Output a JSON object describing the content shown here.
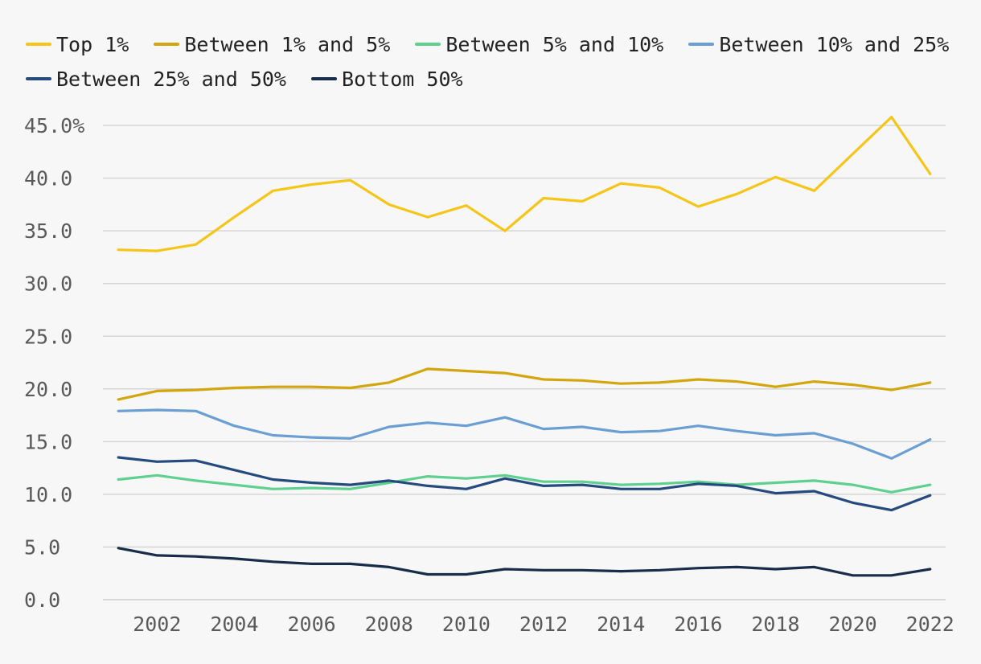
{
  "chart_data": {
    "type": "line",
    "title": "",
    "xlabel": "",
    "ylabel": "",
    "x": [
      2001,
      2002,
      2003,
      2004,
      2005,
      2006,
      2007,
      2008,
      2009,
      2010,
      2011,
      2012,
      2013,
      2014,
      2015,
      2016,
      2017,
      2018,
      2019,
      2020,
      2021,
      2022
    ],
    "x_ticks": [
      "2002",
      "2004",
      "2006",
      "2008",
      "2010",
      "2012",
      "2014",
      "2016",
      "2018",
      "2020",
      "2022"
    ],
    "y_ticks": [
      "0.0",
      "5.0",
      "10.0",
      "15.0",
      "20.0",
      "25.0",
      "30.0",
      "35.0",
      "40.0",
      "45.0%"
    ],
    "ylim": [
      0,
      46
    ],
    "grid": "horizontal",
    "legend_position": "top",
    "series": [
      {
        "name": "Top 1%",
        "color": "#f5c518",
        "values": [
          33.2,
          33.1,
          33.7,
          36.3,
          38.8,
          39.4,
          39.8,
          37.5,
          36.3,
          37.4,
          35.0,
          38.1,
          37.8,
          39.5,
          39.1,
          37.3,
          38.5,
          40.1,
          38.8,
          42.3,
          45.8,
          40.4
        ]
      },
      {
        "name": "Between 1% and 5%",
        "color": "#d4a60d",
        "values": [
          19.0,
          19.8,
          19.9,
          20.1,
          20.2,
          20.2,
          20.1,
          20.6,
          21.9,
          21.7,
          21.5,
          20.9,
          20.8,
          20.5,
          20.6,
          20.9,
          20.7,
          20.2,
          20.7,
          20.4,
          19.9,
          20.6
        ]
      },
      {
        "name": "Between 5% and 10%",
        "color": "#5fd08f",
        "values": [
          11.4,
          11.8,
          11.3,
          10.9,
          10.5,
          10.6,
          10.5,
          11.1,
          11.7,
          11.5,
          11.8,
          11.2,
          11.2,
          10.9,
          11.0,
          11.2,
          10.9,
          11.1,
          11.3,
          10.9,
          10.2,
          10.9
        ]
      },
      {
        "name": "Between 10% and 25%",
        "color": "#6b9ed2",
        "values": [
          17.9,
          18.0,
          17.9,
          16.5,
          15.6,
          15.4,
          15.3,
          16.4,
          16.8,
          16.5,
          17.3,
          16.2,
          16.4,
          15.9,
          16.0,
          16.5,
          16.0,
          15.6,
          15.8,
          14.8,
          13.4,
          15.2
        ]
      },
      {
        "name": "Between 25% and 50%",
        "color": "#254a7e",
        "values": [
          13.5,
          13.1,
          13.2,
          12.3,
          11.4,
          11.1,
          10.9,
          11.3,
          10.8,
          10.5,
          11.5,
          10.8,
          10.9,
          10.5,
          10.5,
          11.0,
          10.8,
          10.1,
          10.3,
          9.2,
          8.5,
          9.9
        ]
      },
      {
        "name": "Bottom 50%",
        "color": "#172d4a",
        "values": [
          4.9,
          4.2,
          4.1,
          3.9,
          3.6,
          3.4,
          3.4,
          3.1,
          2.4,
          2.4,
          2.9,
          2.8,
          2.8,
          2.7,
          2.8,
          3.0,
          3.1,
          2.9,
          3.1,
          2.3,
          2.3,
          2.9
        ]
      }
    ]
  }
}
